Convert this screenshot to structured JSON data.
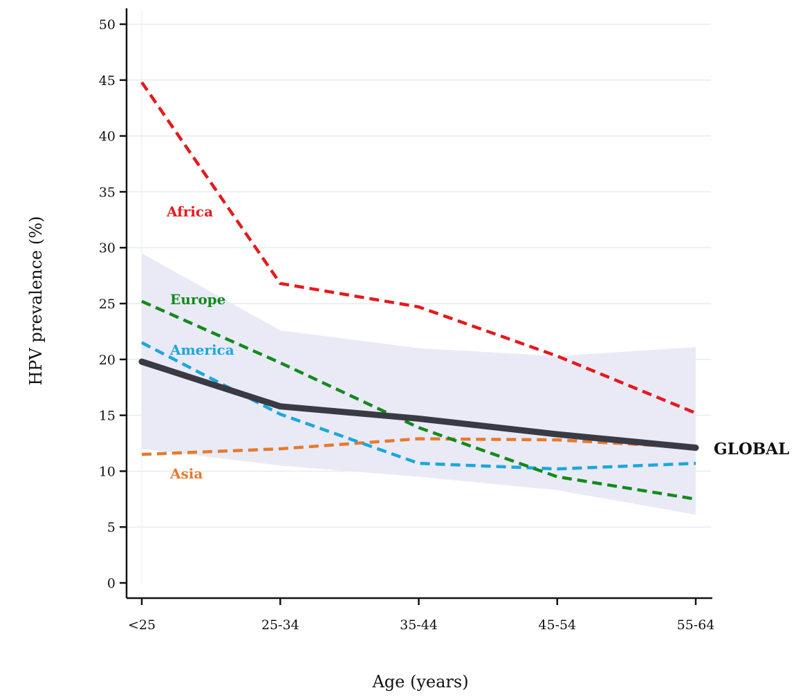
{
  "chart_data": {
    "type": "line",
    "title": "",
    "xlabel": "Age (years)",
    "ylabel": "HPV prevalence (%)",
    "categories": [
      "<25",
      "25-34",
      "35-44",
      "45-54",
      "55-64"
    ],
    "ylim": [
      0,
      50
    ],
    "yticks": [
      0,
      5,
      10,
      15,
      20,
      25,
      30,
      35,
      40,
      45,
      50
    ],
    "grid": "horizontal",
    "legend": "inline labels",
    "confidence_band": {
      "series": "GLOBAL",
      "lower": [
        12.0,
        10.5,
        9.5,
        8.3,
        6.1
      ],
      "upper": [
        29.5,
        22.6,
        21.0,
        20.3,
        21.1
      ],
      "color": "#e8e8f6"
    },
    "series": [
      {
        "name": "Africa",
        "values": [
          44.8,
          26.8,
          24.7,
          20.3,
          15.2
        ],
        "color": "#e41a1c",
        "style": "dashed"
      },
      {
        "name": "Europe",
        "values": [
          25.2,
          19.7,
          13.9,
          9.5,
          7.5
        ],
        "color": "#138a1c",
        "style": "dashed"
      },
      {
        "name": "America",
        "values": [
          21.5,
          15.1,
          10.7,
          10.2,
          10.7
        ],
        "color": "#1aa7de",
        "style": "dashed"
      },
      {
        "name": "Asia",
        "values": [
          11.5,
          12.0,
          12.9,
          12.8,
          12.1
        ],
        "color": "#e57a2e",
        "style": "dashed"
      },
      {
        "name": "GLOBAL",
        "values": [
          19.8,
          15.8,
          14.7,
          13.3,
          12.1
        ],
        "color": "#3a3a44",
        "style": "solid"
      }
    ]
  }
}
